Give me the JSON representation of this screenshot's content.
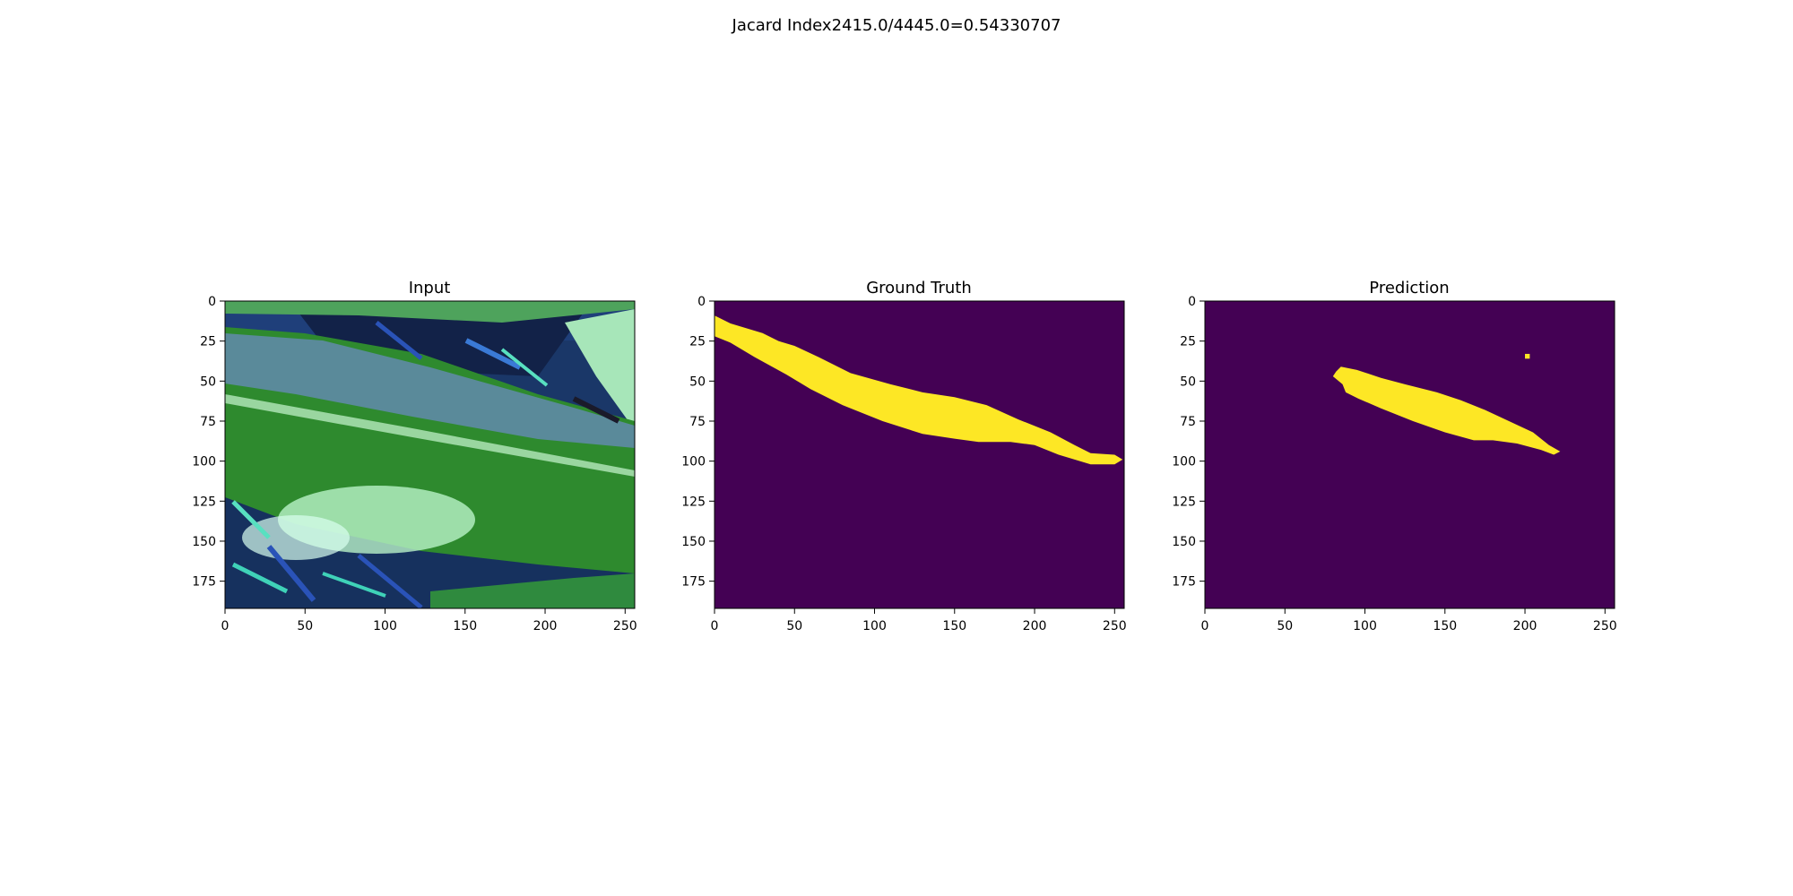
{
  "suptitle": "Jacard Index2415.0/4445.0=0.54330707",
  "colors": {
    "mask_background": "#440154",
    "mask_foreground": "#fde725",
    "leaf_green": "#2e8a2e",
    "leaf_light": "#b9f2c8",
    "background_dark": "#122248",
    "stem_blue": "#2a53b8",
    "stem_cyan": "#3fd2b8"
  },
  "chart_data": [
    {
      "type": "heatmap",
      "title": "Input",
      "content": "rgb image (leaf photo)",
      "xlim": [
        0,
        256
      ],
      "ylim": [
        192,
        0
      ],
      "xticks": [
        "0",
        "50",
        "100",
        "150",
        "200",
        "250"
      ],
      "yticks": [
        "0",
        "25",
        "50",
        "75",
        "100",
        "125",
        "150",
        "175"
      ]
    },
    {
      "type": "heatmap",
      "title": "Ground Truth",
      "content": "binary mask",
      "xlim": [
        0,
        256
      ],
      "ylim": [
        192,
        0
      ],
      "xticks": [
        "0",
        "50",
        "100",
        "150",
        "200",
        "250"
      ],
      "yticks": [
        "0",
        "25",
        "50",
        "75",
        "100",
        "125",
        "150",
        "175"
      ],
      "mask_polygon": [
        [
          0,
          9
        ],
        [
          10,
          14
        ],
        [
          30,
          20
        ],
        [
          40,
          25
        ],
        [
          50,
          28
        ],
        [
          65,
          35
        ],
        [
          85,
          45
        ],
        [
          110,
          52
        ],
        [
          130,
          57
        ],
        [
          150,
          60
        ],
        [
          170,
          65
        ],
        [
          190,
          74
        ],
        [
          210,
          82
        ],
        [
          225,
          90
        ],
        [
          235,
          95
        ],
        [
          250,
          96
        ],
        [
          255,
          99
        ],
        [
          250,
          102
        ],
        [
          235,
          102
        ],
        [
          215,
          96
        ],
        [
          200,
          90
        ],
        [
          185,
          88
        ],
        [
          165,
          88
        ],
        [
          150,
          86
        ],
        [
          130,
          83
        ],
        [
          105,
          75
        ],
        [
          80,
          65
        ],
        [
          60,
          55
        ],
        [
          45,
          46
        ],
        [
          25,
          35
        ],
        [
          10,
          26
        ],
        [
          0,
          22
        ]
      ]
    },
    {
      "type": "heatmap",
      "title": "Prediction",
      "content": "binary mask",
      "xlim": [
        0,
        256
      ],
      "ylim": [
        192,
        0
      ],
      "xticks": [
        "0",
        "50",
        "100",
        "150",
        "200",
        "250"
      ],
      "yticks": [
        "0",
        "25",
        "50",
        "75",
        "100",
        "125",
        "150",
        "175"
      ],
      "mask_polygon": [
        [
          82,
          44
        ],
        [
          85,
          41
        ],
        [
          95,
          43
        ],
        [
          110,
          48
        ],
        [
          125,
          52
        ],
        [
          145,
          57
        ],
        [
          160,
          62
        ],
        [
          175,
          68
        ],
        [
          190,
          75
        ],
        [
          205,
          82
        ],
        [
          215,
          90
        ],
        [
          222,
          94
        ],
        [
          218,
          96
        ],
        [
          210,
          93
        ],
        [
          195,
          89
        ],
        [
          180,
          87
        ],
        [
          168,
          87
        ],
        [
          150,
          82
        ],
        [
          130,
          75
        ],
        [
          110,
          67
        ],
        [
          96,
          61
        ],
        [
          88,
          57
        ],
        [
          86,
          52
        ],
        [
          80,
          47
        ]
      ],
      "mask_polygon_small": [
        [
          200,
          33
        ],
        [
          203,
          33
        ],
        [
          203,
          36
        ],
        [
          200,
          36
        ]
      ]
    }
  ]
}
